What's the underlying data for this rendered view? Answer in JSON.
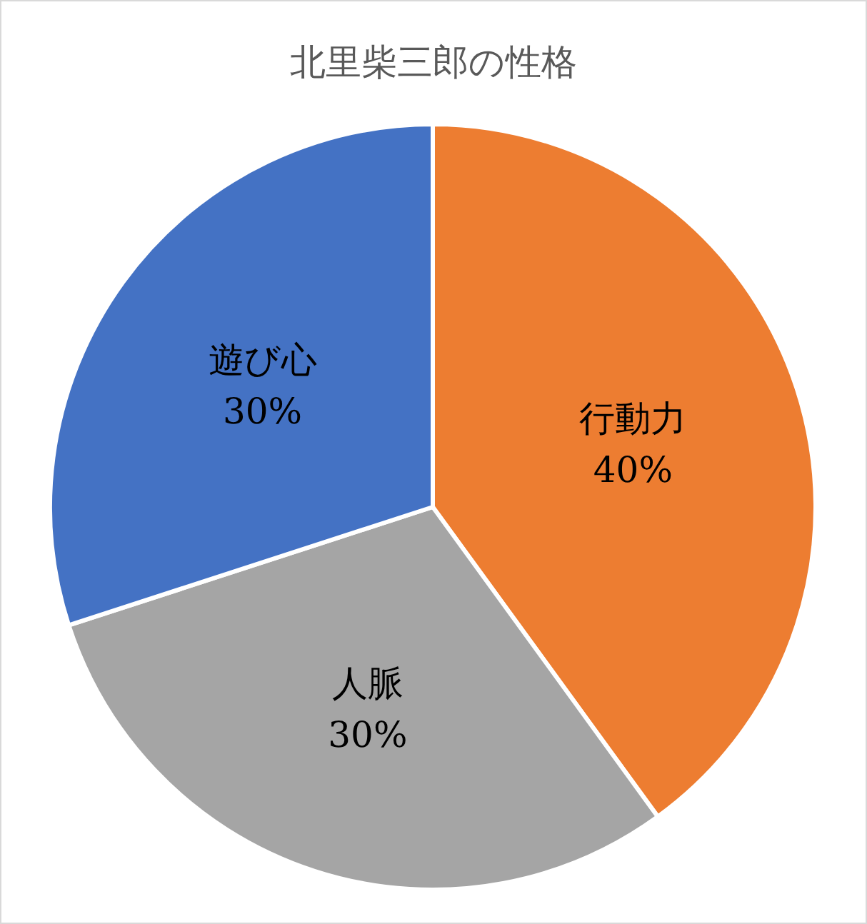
{
  "chart_data": {
    "type": "pie",
    "title": "北里柴三郎の性格",
    "categories": [
      "行動力",
      "人脈",
      "遊び心"
    ],
    "values": [
      40,
      30,
      30
    ],
    "value_labels": [
      "40%",
      "30%",
      "30%"
    ],
    "colors": [
      "#ed7d31",
      "#a5a5a5",
      "#4472c4"
    ]
  }
}
